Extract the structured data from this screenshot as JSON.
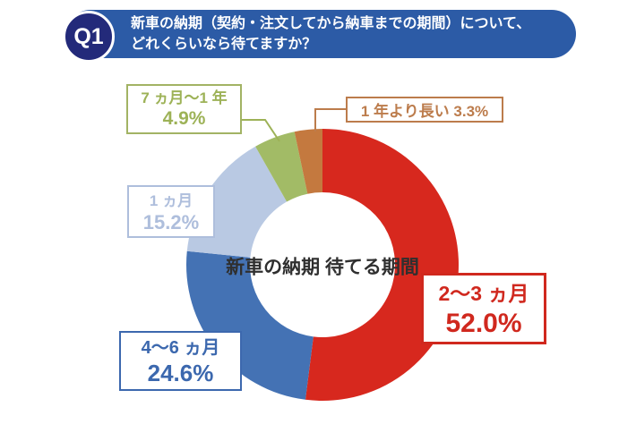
{
  "header": {
    "badge": "Q1",
    "question_line1": "新車の納期（契約・注文してから納車までの期間）について、",
    "question_line2": "どれくらいなら待てますか？",
    "colors": {
      "pill_bg": "#2c5ba6",
      "badge_bg": "#232a7a",
      "text": "#ffffff"
    }
  },
  "chart_data": {
    "type": "pie",
    "subtype": "donut",
    "title": "新車の納期 待てる期間",
    "center_label_line1": "新車の納期",
    "center_label_line2": "待てる期間",
    "start_angle_deg": 0,
    "direction": "clockwise",
    "legend_position": "callout-labels",
    "slices": [
      {
        "label": "2〜3 ヵ月",
        "value": 52.0,
        "display": "52.0%",
        "color": "#d7281e"
      },
      {
        "label": "4〜6 ヵ月",
        "value": 24.6,
        "display": "24.6%",
        "color": "#4472b4"
      },
      {
        "label": "1 ヵ月",
        "value": 15.2,
        "display": "15.2%",
        "color": "#b9c9e3"
      },
      {
        "label": "7 ヵ月〜1 年",
        "value": 4.9,
        "display": "4.9%",
        "color": "#a2bb66"
      },
      {
        "label": "1 年より長い",
        "value": 3.3,
        "display": "3.3%",
        "color": "#c4793f"
      }
    ],
    "callout_colors": {
      "red": "#d0281e",
      "blue": "#3c68ae",
      "light_blue": "#aebedc",
      "green": "#9db257",
      "brown": "#bc7c4c"
    }
  }
}
